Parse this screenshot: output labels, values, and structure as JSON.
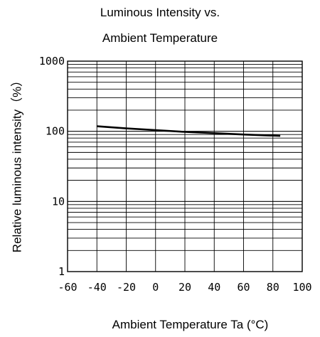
{
  "chart_data": {
    "type": "line",
    "title_line1": "Luminous Intensity vs.",
    "title_line2": "Ambient Temperature",
    "xlabel": "Ambient Temperature Ta (°C)",
    "ylabel": "Relative luminous intensity（%）",
    "xlim": [
      -60,
      100
    ],
    "ylim": [
      1,
      1000
    ],
    "yscale": "log",
    "grid": true,
    "xticks": [
      -60,
      -40,
      -20,
      0,
      20,
      40,
      60,
      80,
      100
    ],
    "xtick_labels": [
      "-60",
      "-40",
      "-20",
      "0",
      "20",
      "40",
      "60",
      "80",
      "100"
    ],
    "yticks": [
      1,
      10,
      100,
      1000
    ],
    "ytick_labels": [
      "1",
      "10",
      "100",
      "1000"
    ],
    "series": [
      {
        "x": [
          -40,
          -20,
          0,
          20,
          40,
          60,
          85
        ],
        "y": [
          118,
          110,
          104,
          98,
          94,
          90,
          86
        ]
      }
    ],
    "line_color": "#000000",
    "grid_color": "#000000"
  }
}
